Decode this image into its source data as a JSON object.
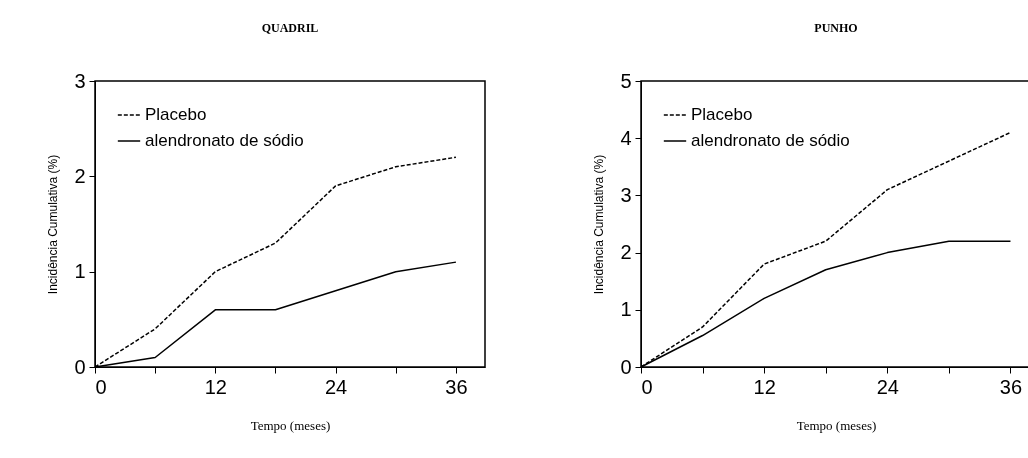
{
  "chart_data": [
    {
      "type": "line",
      "title": "QUADRIL",
      "xlabel": "Tempo (meses)",
      "ylabel": "Incidência Cumulativa (%)",
      "x": [
        0,
        6,
        12,
        18,
        24,
        30,
        36
      ],
      "xlim": [
        0,
        38.9
      ],
      "xticks": [
        0,
        {
          "value": 6,
          "label": null
        },
        12,
        {
          "value": 18,
          "label": null
        },
        24,
        {
          "value": 30,
          "label": null
        },
        36
      ],
      "ylim": [
        0,
        3
      ],
      "yticks": [
        0,
        1,
        2,
        3
      ],
      "grid": false,
      "legend": "top left",
      "marker": "none",
      "series": [
        {
          "name": "Placebo",
          "color": "#000000",
          "line_style": "dashed",
          "values": [
            0,
            0.4,
            1.0,
            1.3,
            1.9,
            2.1,
            2.2
          ]
        },
        {
          "name": "alendronato de sódio",
          "color": "#000000",
          "line_style": "solid",
          "values": [
            0,
            0.1,
            0.6,
            0.6,
            0.8,
            1.0,
            1.1
          ]
        }
      ]
    },
    {
      "type": "line",
      "title": "PUNHO",
      "xlabel": "Tempo (meses)",
      "ylabel": "Incidência Cumulativa (%)",
      "x": [
        0,
        6,
        12,
        18,
        24,
        30,
        36
      ],
      "xlim": [
        0,
        38
      ],
      "xticks": [
        0,
        {
          "value": 6,
          "label": null
        },
        12,
        {
          "value": 18,
          "label": null
        },
        24,
        {
          "value": 30,
          "label": null
        },
        36
      ],
      "ylim": [
        0,
        5
      ],
      "yticks": [
        0,
        1,
        2,
        3,
        4,
        5
      ],
      "grid": false,
      "legend": "top left",
      "marker": "none",
      "series": [
        {
          "name": "Placebo",
          "color": "#000000",
          "line_style": "dashed",
          "values": [
            0,
            0.7,
            1.8,
            2.2,
            3.1,
            3.6,
            4.1
          ]
        },
        {
          "name": "alendronato de sódio",
          "color": "#000000",
          "line_style": "solid",
          "values": [
            0,
            0.55,
            1.2,
            1.7,
            2.0,
            2.2,
            2.2
          ]
        }
      ]
    }
  ]
}
